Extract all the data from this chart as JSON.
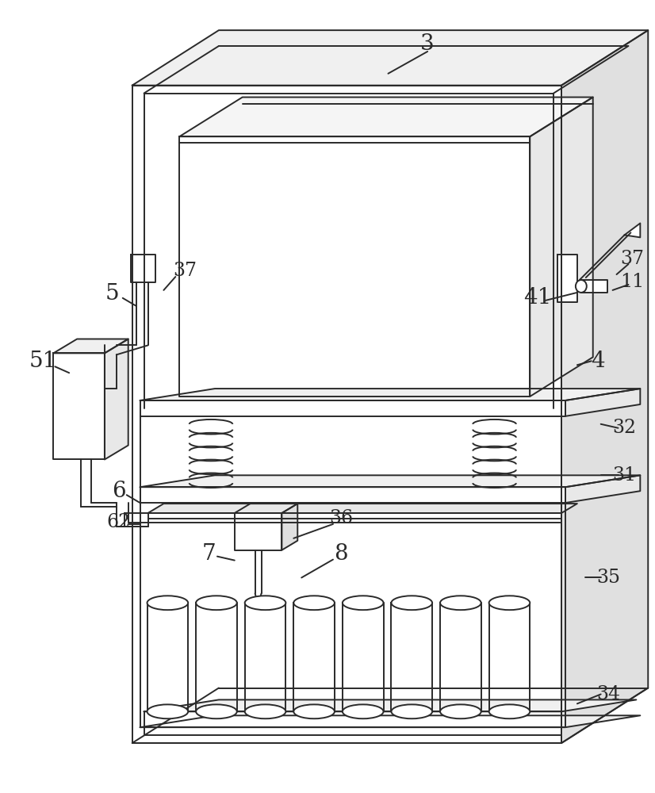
{
  "bg_color": "#ffffff",
  "lc": "#2a2a2a",
  "lw": 1.4,
  "lw_thick": 2.0,
  "fontsize": 20,
  "fontsize_sm": 17
}
